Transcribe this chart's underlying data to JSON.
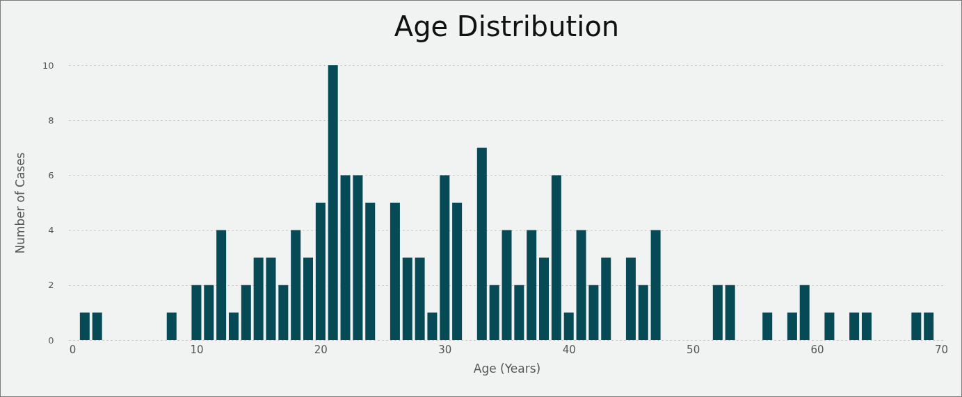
{
  "chart_data": {
    "type": "bar",
    "title": "Age Distribution",
    "xlabel": "Age (Years)",
    "ylabel": "Number of Cases",
    "x": [
      1,
      2,
      8,
      10,
      11,
      12,
      13,
      14,
      15,
      16,
      17,
      18,
      19,
      20,
      21,
      22,
      23,
      24,
      26,
      27,
      28,
      29,
      30,
      31,
      33,
      34,
      35,
      36,
      37,
      38,
      39,
      40,
      41,
      42,
      43,
      45,
      46,
      47,
      52,
      53,
      56,
      58,
      59,
      61,
      63,
      64,
      68,
      69
    ],
    "values": [
      1,
      1,
      1,
      2,
      2,
      4,
      1,
      2,
      3,
      3,
      2,
      4,
      3,
      5,
      10,
      6,
      6,
      5,
      5,
      3,
      3,
      1,
      6,
      5,
      7,
      2,
      4,
      2,
      4,
      3,
      6,
      1,
      4,
      2,
      3,
      3,
      2,
      4,
      2,
      2,
      1,
      1,
      2,
      1,
      1,
      1,
      1,
      1
    ],
    "color": "#054a55",
    "xlim": [
      0,
      70
    ],
    "xticks": [
      0,
      10,
      20,
      30,
      40,
      50,
      60,
      70
    ],
    "ylim": [
      0,
      10
    ],
    "yticks": [
      0,
      2,
      4,
      6,
      8,
      10
    ],
    "grid": "y"
  }
}
